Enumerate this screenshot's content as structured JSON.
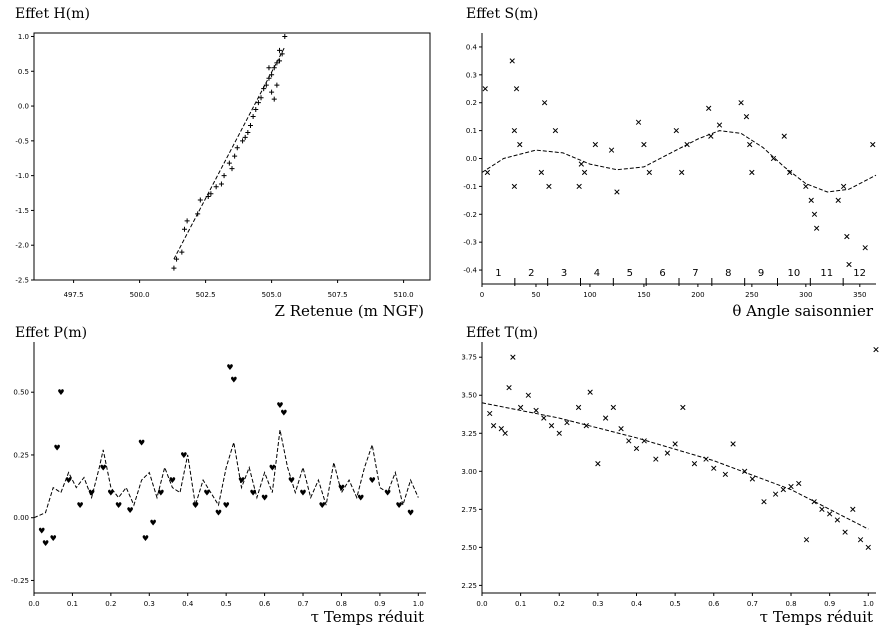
{
  "chart_data": [
    {
      "type": "scatter",
      "title": "Effet H(m)",
      "xlabel": "Z Retenue (m NGF)",
      "ylabel": "",
      "xlim": [
        496.0,
        511.0
      ],
      "ylim": [
        -2.5,
        1.05
      ],
      "xticks": [
        "497.5",
        "500.0",
        "502.5",
        "505.0",
        "507.5",
        "510.0"
      ],
      "yticks": [
        "1.0",
        "0.5",
        "0.0",
        "-0.5",
        "-1.0",
        "-1.5",
        "-2.0",
        "-2.5"
      ],
      "marker": "+",
      "points": [
        [
          501.3,
          -2.33
        ],
        [
          501.4,
          -2.2
        ],
        [
          501.6,
          -2.1
        ],
        [
          501.7,
          -1.77
        ],
        [
          501.8,
          -1.65
        ],
        [
          502.2,
          -1.55
        ],
        [
          502.3,
          -1.35
        ],
        [
          502.6,
          -1.3
        ],
        [
          502.7,
          -1.26
        ],
        [
          502.9,
          -1.16
        ],
        [
          503.1,
          -1.12
        ],
        [
          503.2,
          -1.0
        ],
        [
          503.4,
          -0.82
        ],
        [
          503.5,
          -0.9
        ],
        [
          503.6,
          -0.72
        ],
        [
          503.7,
          -0.6
        ],
        [
          503.9,
          -0.5
        ],
        [
          504.0,
          -0.45
        ],
        [
          504.1,
          -0.38
        ],
        [
          504.2,
          -0.28
        ],
        [
          504.3,
          -0.15
        ],
        [
          504.4,
          -0.05
        ],
        [
          504.5,
          0.05
        ],
        [
          504.6,
          0.12
        ],
        [
          504.7,
          0.25
        ],
        [
          504.8,
          0.3
        ],
        [
          504.9,
          0.4
        ],
        [
          505.0,
          0.45
        ],
        [
          505.1,
          0.55
        ],
        [
          505.2,
          0.62
        ],
        [
          505.3,
          0.65
        ],
        [
          505.4,
          0.75
        ],
        [
          505.5,
          1.0
        ],
        [
          505.0,
          0.2
        ],
        [
          505.2,
          0.3
        ],
        [
          504.9,
          0.55
        ],
        [
          505.3,
          0.8
        ],
        [
          505.1,
          0.1
        ]
      ],
      "fit": [
        [
          501.3,
          -2.2
        ],
        [
          505.5,
          0.85
        ]
      ]
    },
    {
      "type": "scatter",
      "title": "Effet S(m)",
      "xlabel": "θ Angle saisonnier",
      "ylabel": "",
      "xlim": [
        0,
        365
      ],
      "ylim": [
        -0.45,
        0.45
      ],
      "xticks": [
        "0",
        "50",
        "100",
        "150",
        "200",
        "250",
        "300",
        "350"
      ],
      "yticks": [
        "0.4",
        "0.3",
        "0.2",
        "0.1",
        "0.0",
        "-0.1",
        "-0.2",
        "-0.3",
        "-0.4"
      ],
      "months": [
        "1",
        "2",
        "3",
        "4",
        "5",
        "6",
        "7",
        "8",
        "9",
        "10",
        "11",
        "12"
      ],
      "marker": "x",
      "points": [
        [
          3,
          0.25
        ],
        [
          5,
          -0.05
        ],
        [
          28,
          0.35
        ],
        [
          30,
          0.1
        ],
        [
          32,
          0.25
        ],
        [
          30,
          -0.1
        ],
        [
          35,
          0.05
        ],
        [
          55,
          -0.05
        ],
        [
          58,
          0.2
        ],
        [
          62,
          -0.1
        ],
        [
          68,
          0.1
        ],
        [
          90,
          -0.1
        ],
        [
          92,
          -0.02
        ],
        [
          95,
          -0.05
        ],
        [
          105,
          0.05
        ],
        [
          120,
          0.03
        ],
        [
          125,
          -0.12
        ],
        [
          145,
          0.13
        ],
        [
          150,
          0.05
        ],
        [
          155,
          -0.05
        ],
        [
          180,
          0.1
        ],
        [
          185,
          -0.05
        ],
        [
          190,
          0.05
        ],
        [
          210,
          0.18
        ],
        [
          212,
          0.08
        ],
        [
          220,
          0.12
        ],
        [
          240,
          0.2
        ],
        [
          245,
          0.15
        ],
        [
          248,
          0.05
        ],
        [
          250,
          -0.05
        ],
        [
          270,
          0.0
        ],
        [
          280,
          0.08
        ],
        [
          285,
          -0.05
        ],
        [
          300,
          -0.1
        ],
        [
          305,
          -0.15
        ],
        [
          308,
          -0.2
        ],
        [
          310,
          -0.25
        ],
        [
          330,
          -0.15
        ],
        [
          335,
          -0.1
        ],
        [
          338,
          -0.28
        ],
        [
          340,
          -0.38
        ],
        [
          355,
          -0.32
        ],
        [
          362,
          0.05
        ]
      ],
      "fit": [
        [
          0,
          -0.05
        ],
        [
          20,
          0.0
        ],
        [
          50,
          0.03
        ],
        [
          75,
          0.02
        ],
        [
          100,
          -0.02
        ],
        [
          125,
          -0.04
        ],
        [
          150,
          -0.03
        ],
        [
          175,
          0.02
        ],
        [
          200,
          0.07
        ],
        [
          220,
          0.1
        ],
        [
          240,
          0.09
        ],
        [
          260,
          0.04
        ],
        [
          280,
          -0.03
        ],
        [
          300,
          -0.09
        ],
        [
          320,
          -0.12
        ],
        [
          340,
          -0.11
        ],
        [
          365,
          -0.06
        ]
      ]
    },
    {
      "type": "scatter",
      "title": "Effet P(m)",
      "xlabel": "τ Temps réduit",
      "ylabel": "",
      "xlim": [
        0.0,
        1.02
      ],
      "ylim": [
        -0.3,
        0.7
      ],
      "xticks": [
        "0.0",
        "0.1",
        "0.2",
        "0.3",
        "0.4",
        "0.5",
        "0.6",
        "0.7",
        "0.8",
        "0.9",
        "1.0"
      ],
      "yticks": [
        "0.50",
        "0.25",
        "0.00",
        "-0.25"
      ],
      "marker": "♥",
      "points": [
        [
          0.02,
          -0.05
        ],
        [
          0.03,
          -0.1
        ],
        [
          0.05,
          -0.08
        ],
        [
          0.06,
          0.28
        ],
        [
          0.07,
          0.5
        ],
        [
          0.09,
          0.15
        ],
        [
          0.12,
          0.05
        ],
        [
          0.15,
          0.1
        ],
        [
          0.18,
          0.2
        ],
        [
          0.2,
          0.1
        ],
        [
          0.22,
          0.05
        ],
        [
          0.25,
          0.03
        ],
        [
          0.28,
          0.3
        ],
        [
          0.29,
          -0.08
        ],
        [
          0.31,
          -0.02
        ],
        [
          0.33,
          0.1
        ],
        [
          0.36,
          0.15
        ],
        [
          0.39,
          0.25
        ],
        [
          0.42,
          0.05
        ],
        [
          0.45,
          0.1
        ],
        [
          0.48,
          0.02
        ],
        [
          0.5,
          0.05
        ],
        [
          0.51,
          0.6
        ],
        [
          0.52,
          0.55
        ],
        [
          0.54,
          0.15
        ],
        [
          0.57,
          0.1
        ],
        [
          0.6,
          0.08
        ],
        [
          0.62,
          0.2
        ],
        [
          0.64,
          0.45
        ],
        [
          0.65,
          0.42
        ],
        [
          0.67,
          0.15
        ],
        [
          0.7,
          0.1
        ],
        [
          0.75,
          0.05
        ],
        [
          0.8,
          0.12
        ],
        [
          0.85,
          0.08
        ],
        [
          0.88,
          0.15
        ],
        [
          0.92,
          0.1
        ],
        [
          0.95,
          0.05
        ],
        [
          0.98,
          0.02
        ]
      ],
      "fit": [
        [
          0.0,
          0.0
        ],
        [
          0.03,
          0.02
        ],
        [
          0.05,
          0.12
        ],
        [
          0.07,
          0.1
        ],
        [
          0.09,
          0.18
        ],
        [
          0.11,
          0.12
        ],
        [
          0.13,
          0.16
        ],
        [
          0.15,
          0.08
        ],
        [
          0.17,
          0.2
        ],
        [
          0.18,
          0.27
        ],
        [
          0.2,
          0.12
        ],
        [
          0.22,
          0.08
        ],
        [
          0.24,
          0.12
        ],
        [
          0.26,
          0.05
        ],
        [
          0.28,
          0.15
        ],
        [
          0.3,
          0.18
        ],
        [
          0.32,
          0.08
        ],
        [
          0.34,
          0.2
        ],
        [
          0.36,
          0.12
        ],
        [
          0.38,
          0.1
        ],
        [
          0.4,
          0.25
        ],
        [
          0.42,
          0.05
        ],
        [
          0.44,
          0.15
        ],
        [
          0.46,
          0.1
        ],
        [
          0.48,
          0.05
        ],
        [
          0.5,
          0.2
        ],
        [
          0.52,
          0.3
        ],
        [
          0.54,
          0.12
        ],
        [
          0.56,
          0.2
        ],
        [
          0.58,
          0.08
        ],
        [
          0.6,
          0.18
        ],
        [
          0.62,
          0.1
        ],
        [
          0.64,
          0.35
        ],
        [
          0.66,
          0.2
        ],
        [
          0.68,
          0.1
        ],
        [
          0.7,
          0.2
        ],
        [
          0.72,
          0.08
        ],
        [
          0.74,
          0.15
        ],
        [
          0.76,
          0.05
        ],
        [
          0.78,
          0.22
        ],
        [
          0.8,
          0.1
        ],
        [
          0.82,
          0.15
        ],
        [
          0.84,
          0.08
        ],
        [
          0.86,
          0.2
        ],
        [
          0.88,
          0.29
        ],
        [
          0.9,
          0.12
        ],
        [
          0.92,
          0.1
        ],
        [
          0.94,
          0.18
        ],
        [
          0.96,
          0.05
        ],
        [
          0.98,
          0.15
        ],
        [
          1.0,
          0.08
        ]
      ]
    },
    {
      "type": "scatter",
      "title": "Effet T(m)",
      "xlabel": "τ Temps réduit",
      "ylabel": "",
      "xlim": [
        0.0,
        1.02
      ],
      "ylim": [
        2.2,
        3.85
      ],
      "xticks": [
        "0.0",
        "0.1",
        "0.2",
        "0.3",
        "0.4",
        "0.5",
        "0.6",
        "0.7",
        "0.8",
        "0.9",
        "1.0"
      ],
      "yticks": [
        "3.75",
        "3.50",
        "3.25",
        "3.00",
        "2.75",
        "2.50",
        "2.25"
      ],
      "marker": "x",
      "points": [
        [
          0.02,
          3.38
        ],
        [
          0.03,
          3.3
        ],
        [
          0.05,
          3.28
        ],
        [
          0.06,
          3.25
        ],
        [
          0.07,
          3.55
        ],
        [
          0.08,
          3.75
        ],
        [
          0.1,
          3.42
        ],
        [
          0.12,
          3.5
        ],
        [
          0.14,
          3.4
        ],
        [
          0.16,
          3.35
        ],
        [
          0.18,
          3.3
        ],
        [
          0.2,
          3.25
        ],
        [
          0.22,
          3.32
        ],
        [
          0.25,
          3.42
        ],
        [
          0.27,
          3.3
        ],
        [
          0.28,
          3.52
        ],
        [
          0.3,
          3.05
        ],
        [
          0.32,
          3.35
        ],
        [
          0.34,
          3.42
        ],
        [
          0.36,
          3.28
        ],
        [
          0.38,
          3.2
        ],
        [
          0.4,
          3.15
        ],
        [
          0.42,
          3.2
        ],
        [
          0.45,
          3.08
        ],
        [
          0.48,
          3.12
        ],
        [
          0.5,
          3.18
        ],
        [
          0.52,
          3.42
        ],
        [
          0.55,
          3.05
        ],
        [
          0.58,
          3.08
        ],
        [
          0.6,
          3.02
        ],
        [
          0.63,
          2.98
        ],
        [
          0.65,
          3.18
        ],
        [
          0.68,
          3.0
        ],
        [
          0.7,
          2.95
        ],
        [
          0.73,
          2.8
        ],
        [
          0.76,
          2.85
        ],
        [
          0.78,
          2.88
        ],
        [
          0.8,
          2.9
        ],
        [
          0.82,
          2.92
        ],
        [
          0.84,
          2.55
        ],
        [
          0.86,
          2.8
        ],
        [
          0.88,
          2.75
        ],
        [
          0.9,
          2.72
        ],
        [
          0.92,
          2.68
        ],
        [
          0.94,
          2.6
        ],
        [
          0.96,
          2.75
        ],
        [
          0.98,
          2.55
        ],
        [
          1.0,
          2.5
        ],
        [
          1.02,
          3.8
        ]
      ],
      "fit": [
        [
          0.0,
          3.45
        ],
        [
          0.2,
          3.35
        ],
        [
          0.4,
          3.22
        ],
        [
          0.6,
          3.07
        ],
        [
          0.8,
          2.88
        ],
        [
          1.0,
          2.62
        ]
      ]
    }
  ]
}
